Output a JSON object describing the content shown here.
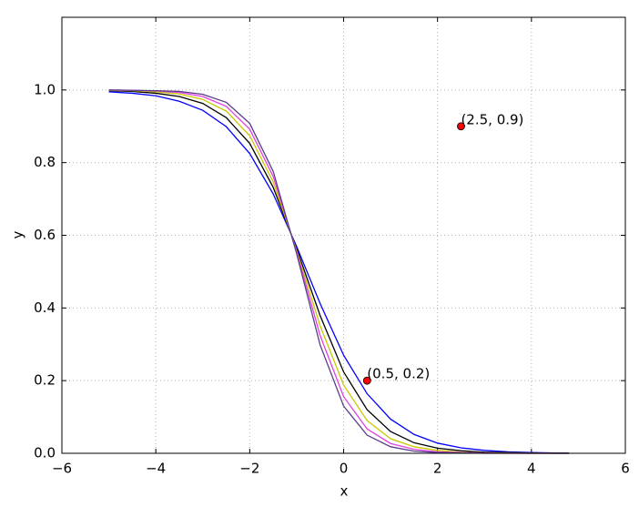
{
  "chart_data": {
    "type": "line",
    "x_label": "x",
    "y_label": "y",
    "x": [
      -5,
      -4.5,
      -4,
      -3.5,
      -3,
      -2.5,
      -2,
      -1.5,
      -1,
      -0.5,
      0,
      0.5,
      1,
      1.5,
      2,
      2.5,
      3,
      3.5,
      4,
      4.5,
      4.8
    ],
    "series": [
      {
        "color": "#0000ff",
        "values": [
          0.995,
          0.991,
          0.984,
          0.969,
          0.944,
          0.899,
          0.825,
          0.714,
          0.569,
          0.412,
          0.27,
          0.164,
          0.094,
          0.052,
          0.028,
          0.015,
          0.008,
          0.004,
          0.002,
          0.001,
          0.001
        ]
      },
      {
        "color": "#000000",
        "values": [
          0.998,
          0.996,
          0.991,
          0.982,
          0.963,
          0.924,
          0.853,
          0.732,
          0.563,
          0.379,
          0.224,
          0.12,
          0.06,
          0.029,
          0.014,
          0.007,
          0.003,
          0.002,
          0.001,
          0,
          0
        ]
      },
      {
        "color": "#c8c800",
        "values": [
          0.999,
          0.998,
          0.995,
          0.989,
          0.974,
          0.942,
          0.874,
          0.747,
          0.558,
          0.351,
          0.188,
          0.09,
          0.04,
          0.018,
          0.008,
          0.003,
          0.001,
          0.001,
          0,
          0,
          0
        ]
      },
      {
        "color": "#e040e0",
        "values": [
          1,
          0.999,
          0.997,
          0.993,
          0.982,
          0.955,
          0.892,
          0.762,
          0.554,
          0.324,
          0.156,
          0.067,
          0.027,
          0.011,
          0.004,
          0.002,
          0.001,
          0,
          0,
          0,
          0
        ]
      },
      {
        "color": "#5a3c8c",
        "values": [
          1,
          0.999,
          0.998,
          0.996,
          0.988,
          0.966,
          0.908,
          0.776,
          0.549,
          0.298,
          0.13,
          0.05,
          0.018,
          0.006,
          0.002,
          0.001,
          0,
          0,
          0,
          0,
          0
        ]
      }
    ],
    "points": {
      "x": [
        0.5,
        2.5
      ],
      "y": [
        0.2,
        0.9
      ],
      "color": "#ff0000",
      "labels": [
        "(0.5, 0.2)",
        "(2.5, 0.9)"
      ]
    },
    "xlim": [
      -6,
      6
    ],
    "ylim": [
      0,
      1.2
    ],
    "xticks": [
      {
        "value": -6,
        "label": "−6"
      },
      {
        "value": -4,
        "label": "−4"
      },
      {
        "value": -2,
        "label": "−2"
      },
      0,
      2,
      4,
      6
    ],
    "yticks": [
      {
        "value": 0,
        "label": "0.0"
      },
      0.2,
      0.4,
      0.6,
      0.8,
      {
        "value": 1,
        "label": "1.0"
      }
    ],
    "grid": true
  }
}
